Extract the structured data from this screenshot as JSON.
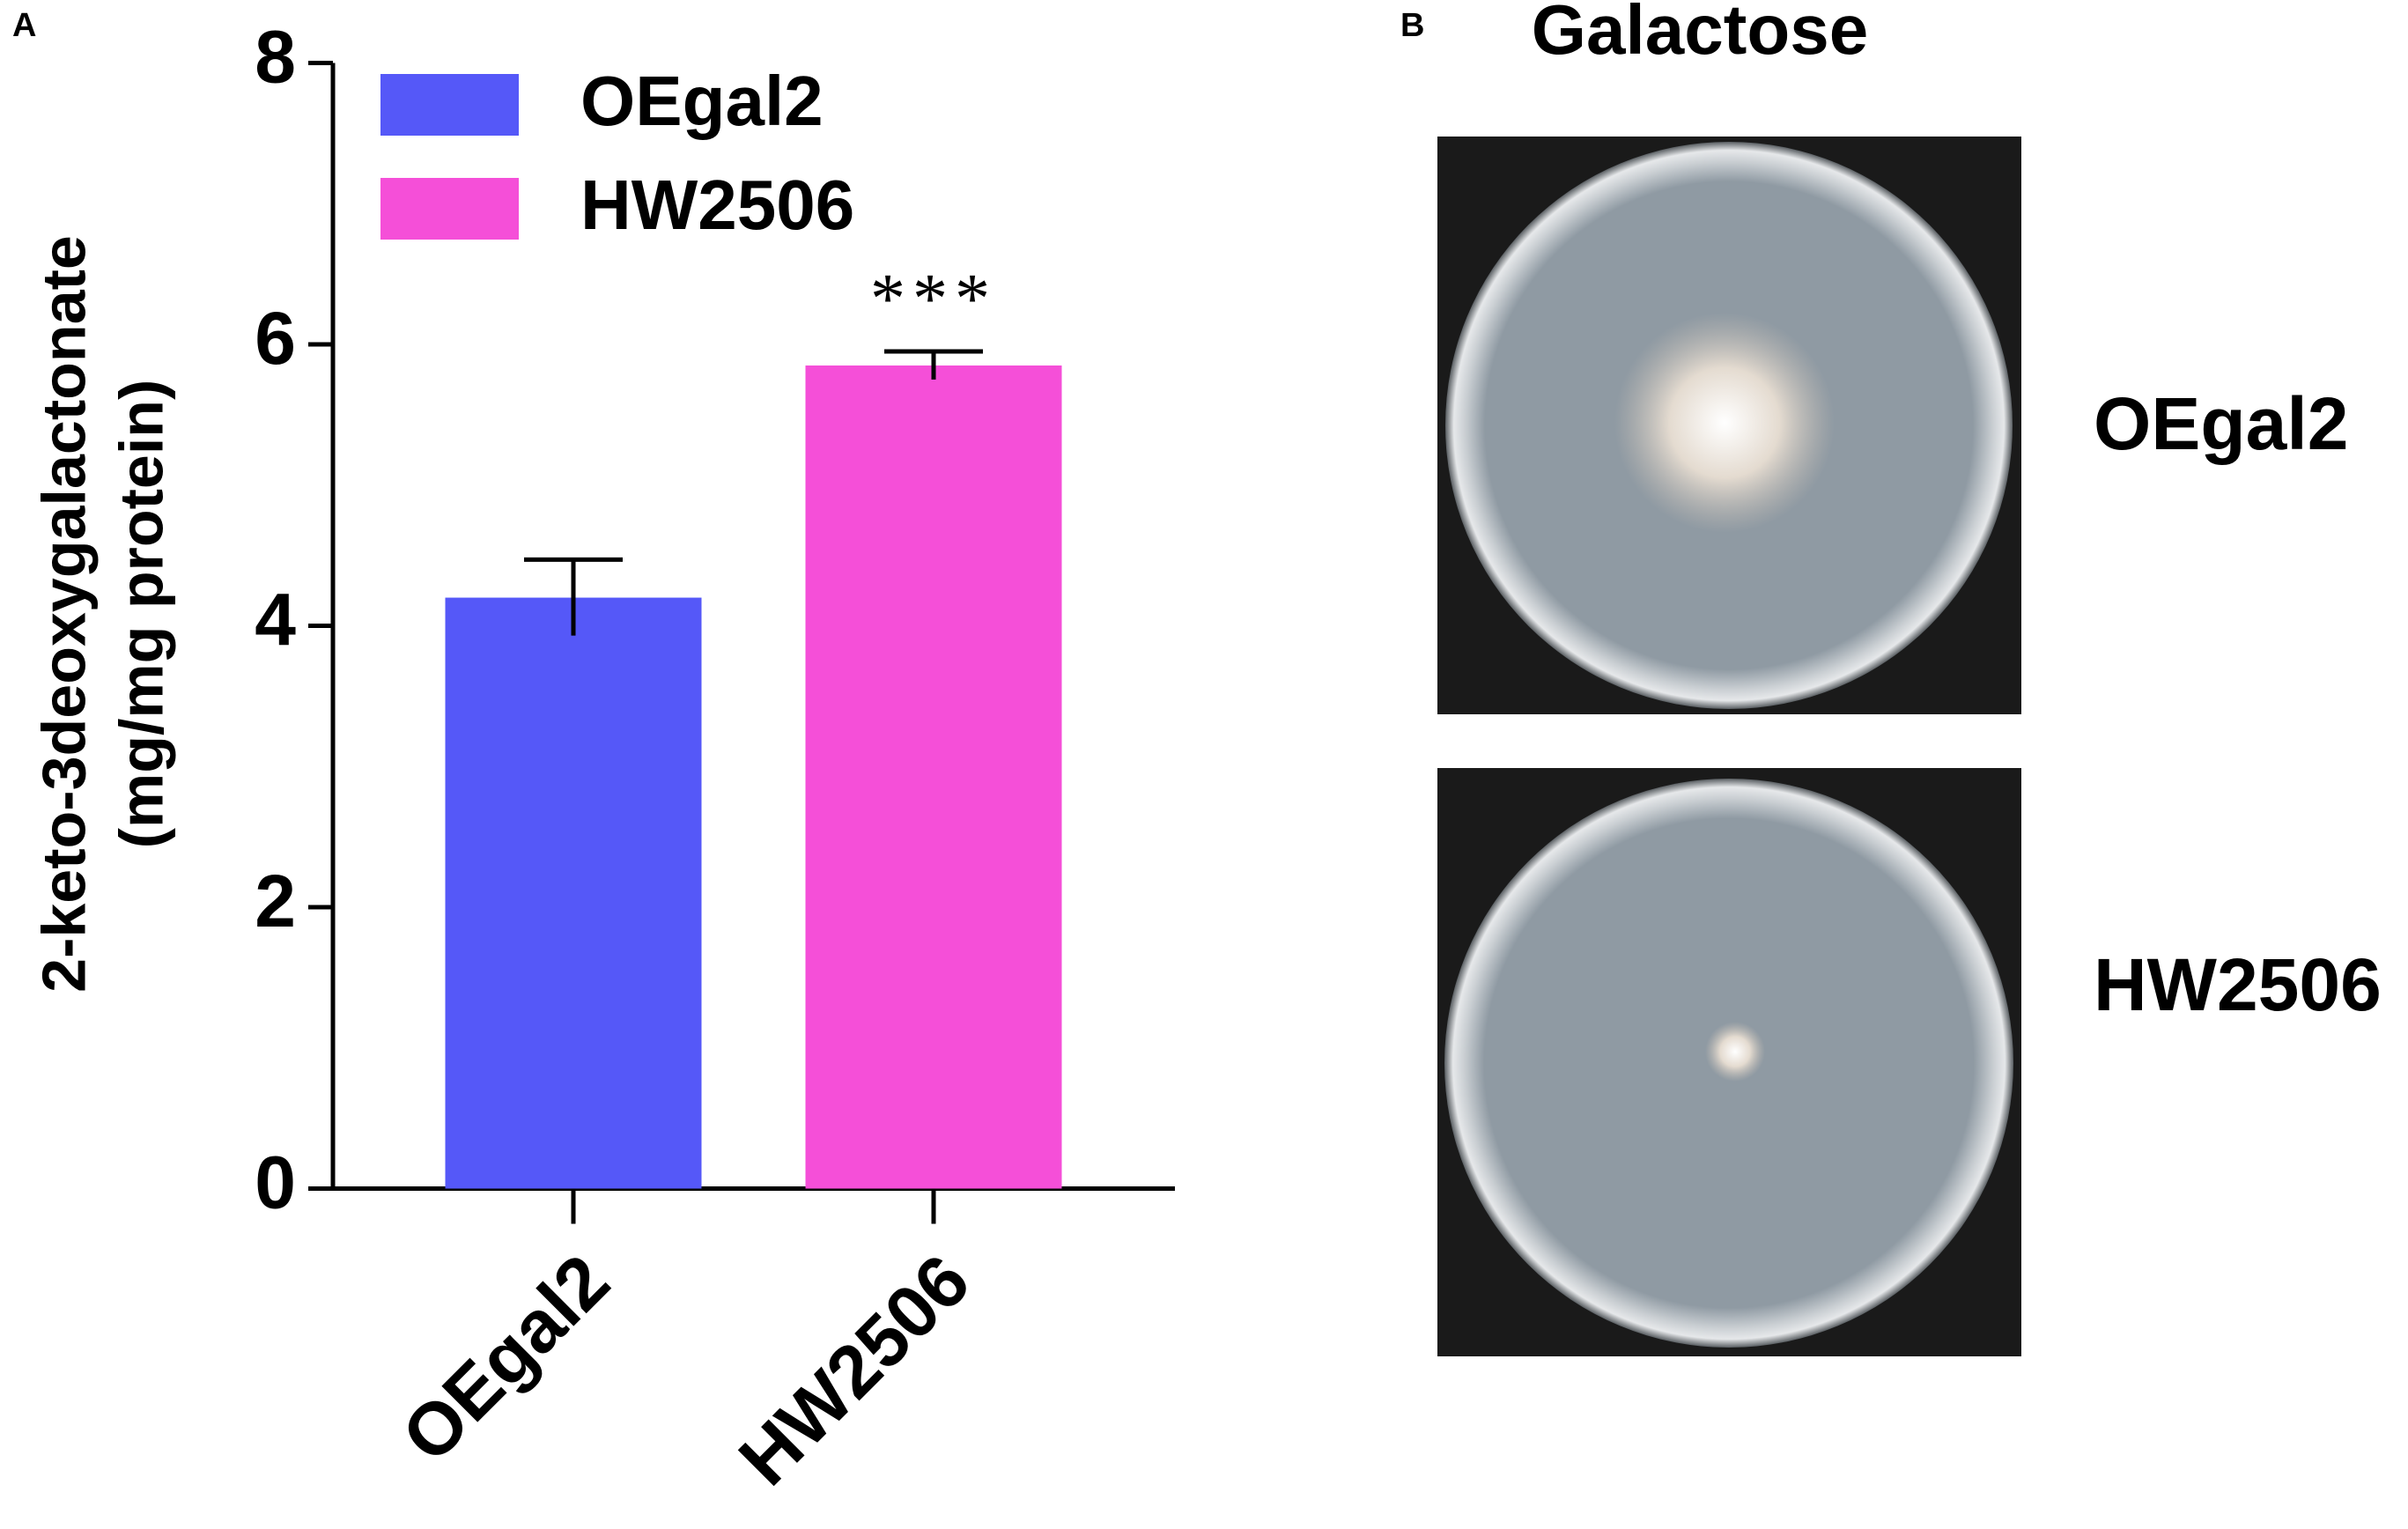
{
  "chart_data": {
    "type": "bar",
    "panel_label": "A",
    "ylabel": [
      "2-keto-3deoxygalactonate",
      "(mg/mg protein)"
    ],
    "categories": [
      "OEgal2",
      "HW2506"
    ],
    "values": [
      4.2,
      5.85
    ],
    "errors": [
      0.27,
      0.1
    ],
    "colors": [
      "#5558f8",
      "#f54fd8"
    ],
    "legend": [
      "OEgal2",
      "HW2506"
    ],
    "value_annotations": [
      null,
      "***"
    ],
    "ylim": [
      0,
      8
    ],
    "yticks": [
      0,
      2,
      4,
      6,
      8
    ]
  },
  "panel_b": {
    "label": "B",
    "title": "Galactose",
    "rows": [
      "OEgal2",
      "HW2506"
    ]
  }
}
